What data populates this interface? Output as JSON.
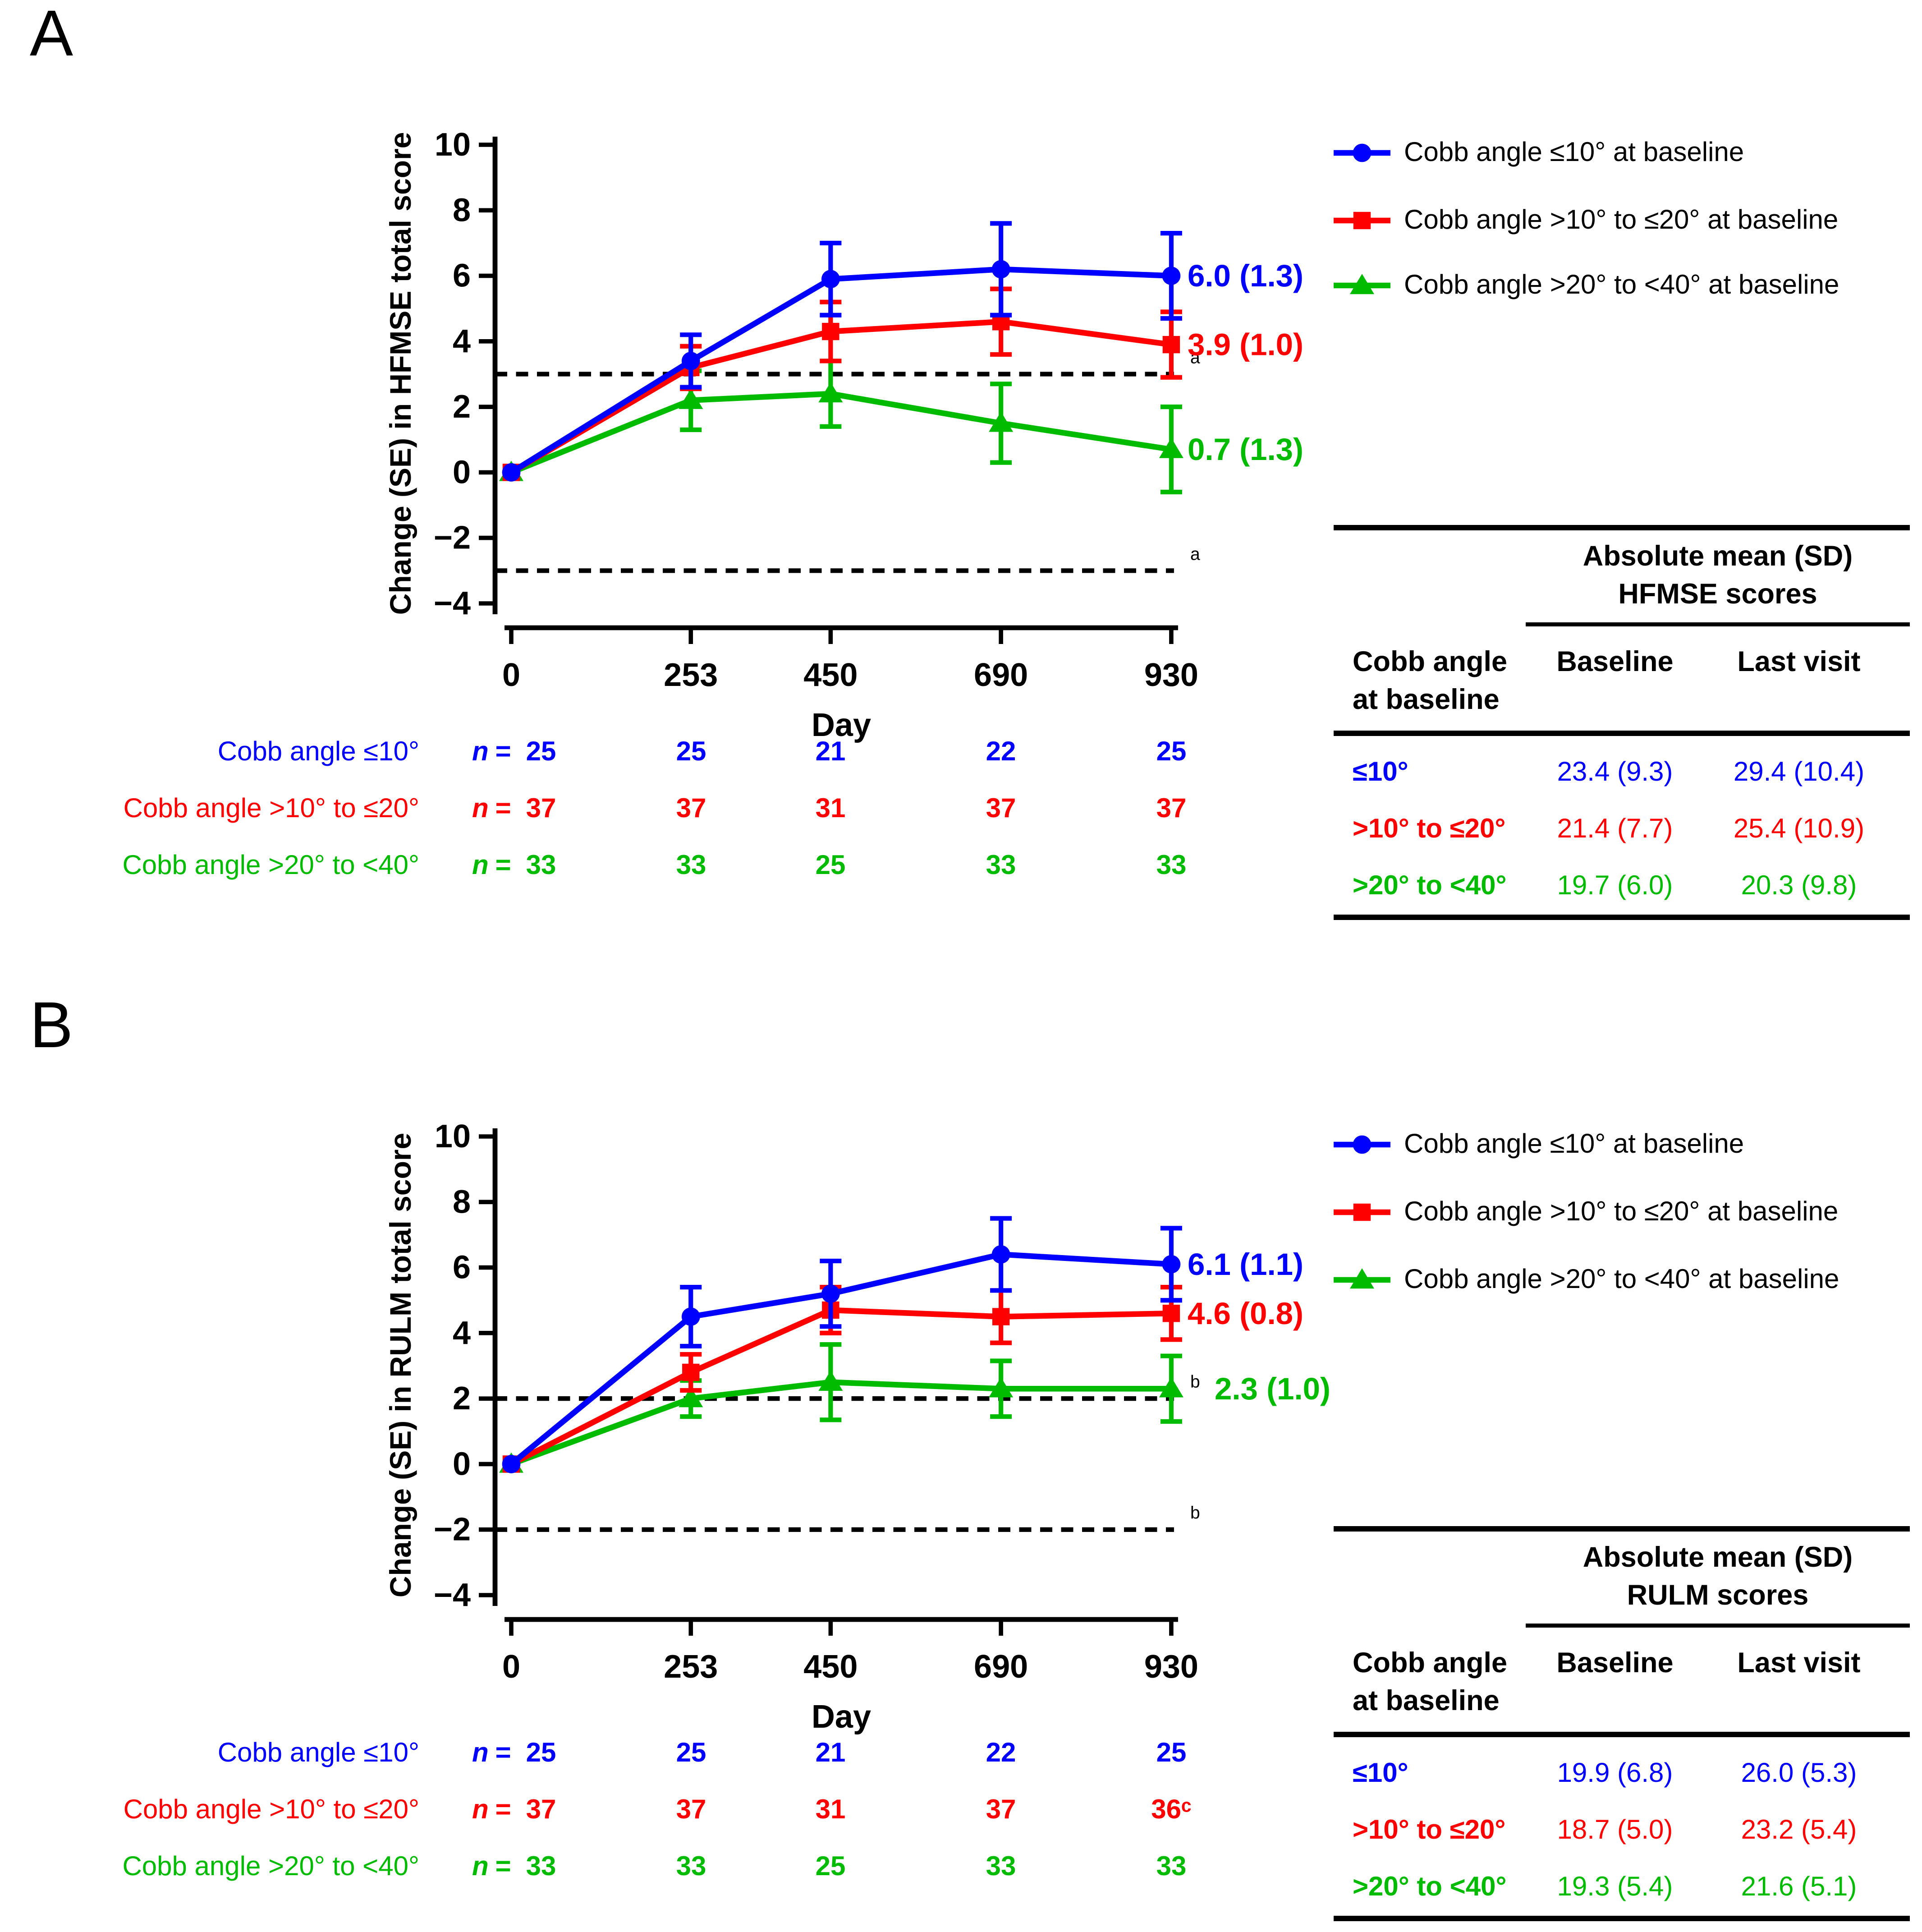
{
  "chart_data": [
    {
      "type": "line",
      "panel_label": "A",
      "ylabel": "Change (SE) in HFMSE total score",
      "xlabel": "Day",
      "ylim": [
        -4,
        10
      ],
      "y_ticks": [
        10,
        8,
        6,
        4,
        2,
        0,
        -2,
        -4
      ],
      "x": [
        0,
        253,
        450,
        690,
        930
      ],
      "grid": false,
      "legend_position": "top-right",
      "thresholds": [
        {
          "y": 3,
          "sup": "a"
        },
        {
          "y": -3,
          "sup": "a"
        }
      ],
      "n_symbol": "n",
      "n_equals": "=",
      "series": [
        {
          "name": "Cobb angle ≤10° at baseline",
          "short_label": "Cobb angle ≤10°",
          "color": "#0000FF",
          "marker": "circle",
          "values": [
            0,
            3.4,
            5.9,
            6.2,
            6.0
          ],
          "se": [
            0,
            0.8,
            1.1,
            1.4,
            1.3
          ],
          "end_label": "6.0 (1.3)",
          "n": [
            "25",
            "25",
            "21",
            "22",
            "25"
          ]
        },
        {
          "name": "Cobb angle >10° to ≤20° at baseline",
          "short_label": "Cobb angle >10° to ≤20°",
          "color": "#FF0000",
          "marker": "square",
          "values": [
            0,
            3.2,
            4.3,
            4.6,
            3.9
          ],
          "se": [
            0,
            0.65,
            0.9,
            1.0,
            1.0
          ],
          "end_label": "3.9 (1.0)",
          "n": [
            "37",
            "37",
            "31",
            "37",
            "37"
          ]
        },
        {
          "name": "Cobb angle >20° to <40° at baseline",
          "short_label": "Cobb angle >20° to <40°",
          "color": "#00BB00",
          "marker": "triangle",
          "values": [
            0,
            2.2,
            2.4,
            1.5,
            0.7
          ],
          "se": [
            0,
            0.9,
            1.0,
            1.2,
            1.3
          ],
          "end_label": "0.7 (1.3)",
          "n": [
            "33",
            "33",
            "25",
            "33",
            "33"
          ]
        }
      ],
      "table": {
        "title_line1": "Absolute mean (SD)",
        "title_line2": "HFMSE scores",
        "row_header_line1": "Cobb angle",
        "row_header_line2": "at baseline",
        "col_baseline": "Baseline",
        "col_last": "Last visit",
        "rows": [
          {
            "label": "≤10°",
            "color": "#0000FF",
            "baseline": "23.4 (9.3)",
            "last_visit": "29.4 (10.4)"
          },
          {
            "label": ">10° to ≤20°",
            "color": "#FF0000",
            "baseline": "21.4 (7.7)",
            "last_visit": "25.4 (10.9)"
          },
          {
            "label": ">20° to <40°",
            "color": "#00BB00",
            "baseline": "19.7 (6.0)",
            "last_visit": "20.3 (9.8)"
          }
        ]
      }
    },
    {
      "type": "line",
      "panel_label": "B",
      "ylabel": "Change (SE) in RULM total score",
      "xlabel": "Day",
      "ylim": [
        -4,
        10
      ],
      "y_ticks": [
        10,
        8,
        6,
        4,
        2,
        0,
        -2,
        -4
      ],
      "x": [
        0,
        253,
        450,
        690,
        930
      ],
      "grid": false,
      "legend_position": "top-right",
      "thresholds": [
        {
          "y": 2,
          "sup": "b"
        },
        {
          "y": -2,
          "sup": "b"
        }
      ],
      "n_symbol": "n",
      "n_equals": "=",
      "series": [
        {
          "name": "Cobb angle ≤10° at baseline",
          "short_label": "Cobb angle ≤10°",
          "color": "#0000FF",
          "marker": "circle",
          "values": [
            0,
            4.5,
            5.2,
            6.4,
            6.1
          ],
          "se": [
            0,
            0.9,
            1.0,
            1.1,
            1.1
          ],
          "end_label": "6.1 (1.1)",
          "n": [
            "25",
            "25",
            "21",
            "22",
            "25"
          ]
        },
        {
          "name": "Cobb angle >10° to ≤20° at baseline",
          "short_label": "Cobb angle >10° to ≤20°",
          "color": "#FF0000",
          "marker": "square",
          "values": [
            0,
            2.8,
            4.7,
            4.5,
            4.6
          ],
          "se": [
            0,
            0.55,
            0.7,
            0.8,
            0.8
          ],
          "end_label": "4.6 (0.8)",
          "n": [
            "37",
            "37",
            "31",
            "37",
            "36ᶜ"
          ]
        },
        {
          "name": "Cobb angle >20° to <40° at baseline",
          "short_label": "Cobb angle >20° to <40°",
          "color": "#00BB00",
          "marker": "triangle",
          "values": [
            0,
            2.0,
            2.5,
            2.3,
            2.3
          ],
          "se": [
            0,
            0.55,
            1.15,
            0.85,
            1.0
          ],
          "end_label": "2.3 (1.0)",
          "n": [
            "33",
            "33",
            "25",
            "33",
            "33"
          ]
        }
      ],
      "table": {
        "title_line1": "Absolute mean (SD)",
        "title_line2": "RULM scores",
        "row_header_line1": "Cobb angle",
        "row_header_line2": "at baseline",
        "col_baseline": "Baseline",
        "col_last": "Last visit",
        "rows": [
          {
            "label": "≤10°",
            "color": "#0000FF",
            "baseline": "19.9 (6.8)",
            "last_visit": "26.0 (5.3)"
          },
          {
            "label": ">10° to ≤20°",
            "color": "#FF0000",
            "baseline": "18.7 (5.0)",
            "last_visit": "23.2 (5.4)"
          },
          {
            "label": ">20° to <40°",
            "color": "#00BB00",
            "baseline": "19.3 (5.4)",
            "last_visit": "21.6 (5.1)"
          }
        ]
      }
    }
  ]
}
